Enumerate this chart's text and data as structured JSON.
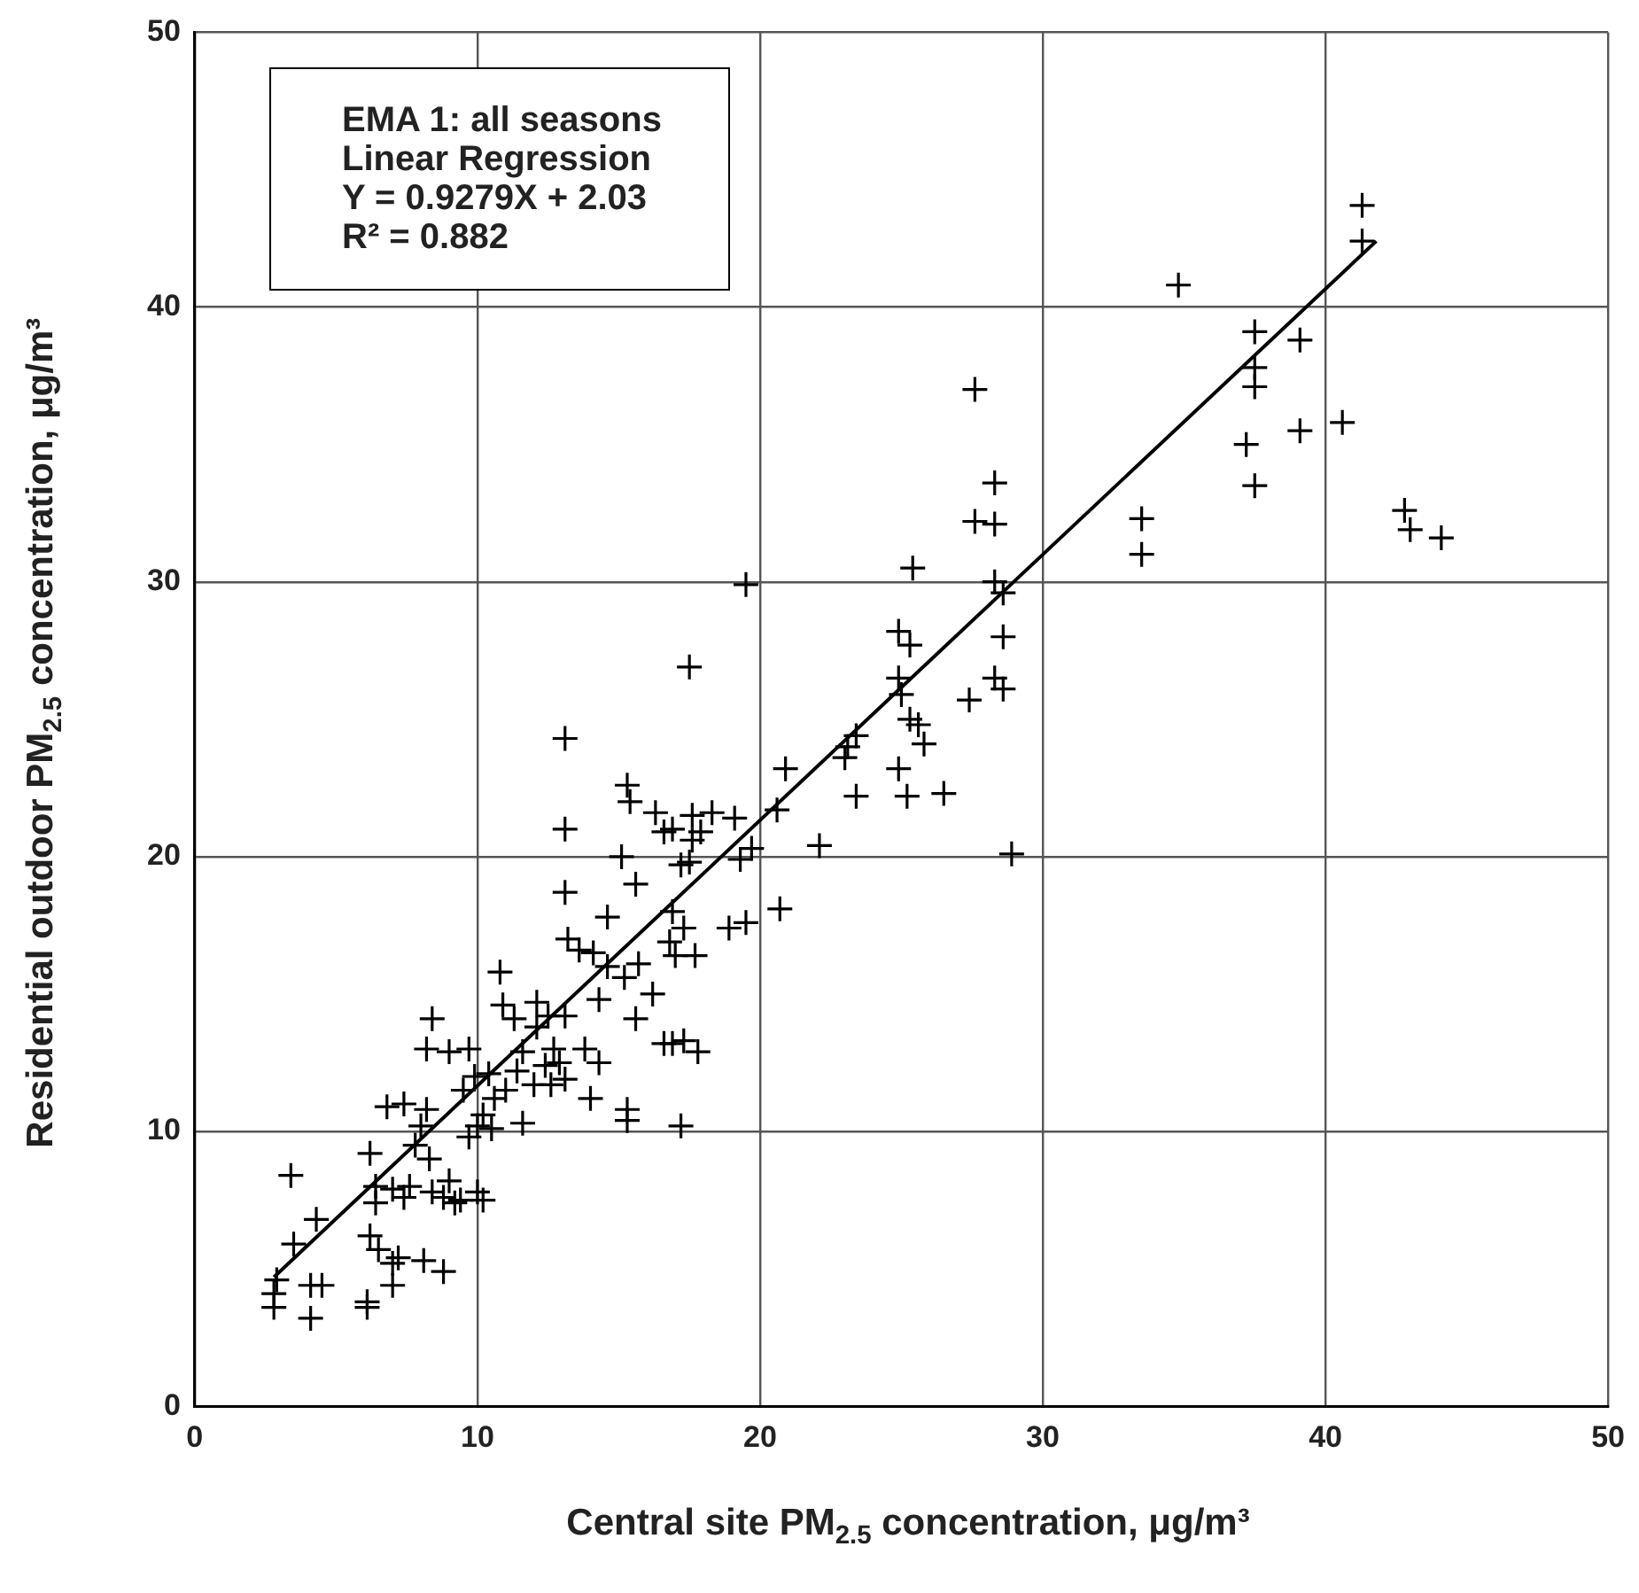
{
  "chart_data": {
    "type": "scatter",
    "xlabel": "Central site PM$_{2.5}$ concentration, μg/m³",
    "ylabel": "Residential outdoor PM$_{2.5}$ concentration, μg/m³",
    "annotations": [
      "EMA 1: all seasons",
      "Linear Regression",
      "Y = 0.9279X + 2.03",
      "R² = 0.882"
    ],
    "xlim": [
      0,
      50
    ],
    "ylim": [
      0,
      50
    ],
    "xticks": [
      0,
      10,
      20,
      30,
      40,
      50
    ],
    "yticks": [
      0,
      10,
      20,
      30,
      40,
      50
    ],
    "grid": true,
    "legend": false,
    "series": [
      {
        "marker": "cross",
        "color": "#000000",
        "x": [
          41.3,
          41.3,
          34.8,
          37.5,
          39.1,
          37.5,
          37.5,
          37.2,
          37.5,
          39.1,
          40.6,
          42.8,
          43.0,
          44.1,
          33.5,
          33.5,
          27.6,
          28.3,
          27.6,
          28.3,
          28.3,
          28.6,
          28.6,
          28.3,
          28.6,
          28.9,
          25.4,
          24.9,
          25.3,
          24.9,
          25.0,
          25.3,
          25.6,
          25.8,
          24.9,
          25.2,
          26.5,
          27.4,
          23.4,
          23.1,
          23.0,
          23.4,
          22.1,
          20.9,
          20.6,
          20.7,
          19.5,
          17.5,
          13.1,
          15.3,
          15.4,
          16.3,
          16.9,
          17.6,
          17.9,
          18.3,
          19.1,
          17.6,
          16.6,
          15.1,
          13.1,
          19.7,
          19.3,
          17.2,
          17.5,
          15.6,
          14.6,
          13.1,
          16.9,
          17.3,
          18.9,
          19.5,
          16.8,
          17.0,
          17.7,
          15.2,
          15.7,
          13.2,
          13.6,
          14.1,
          14.6,
          14.3,
          16.2,
          16.6,
          16.9,
          17.3,
          17.8,
          15.6,
          15.3,
          15.3,
          17.2,
          14.0,
          14.3,
          13.8,
          10.8,
          10.9,
          11.3,
          12.1,
          12.5,
          12.1,
          13.1,
          12.7,
          12.9,
          12.4,
          11.4,
          11.6,
          12.0,
          12.6,
          13.1,
          11.6,
          10.6,
          11.0,
          10.4,
          9.9,
          10.2,
          10.0,
          10.5,
          9.7,
          9.5,
          9.0,
          8.4,
          8.2,
          9.7,
          8.0,
          8.2,
          7.4,
          6.8,
          7.8,
          8.3,
          6.2,
          6.4,
          7.0,
          7.4,
          7.6,
          8.4,
          9.0,
          9.2,
          8.8,
          9.4,
          10.0,
          10.2,
          6.2,
          6.5,
          7.0,
          7.2,
          8.1,
          8.8,
          7.0,
          6.1,
          6.1,
          4.3,
          3.5,
          3.4,
          2.9,
          2.8,
          2.8,
          4.1,
          4.5,
          4.1,
          6.4
        ],
        "values": [
          43.7,
          42.4,
          40.8,
          39.1,
          38.8,
          37.8,
          37.1,
          35.0,
          33.5,
          35.5,
          35.8,
          32.6,
          31.9,
          31.6,
          32.3,
          31.0,
          37.0,
          33.6,
          32.2,
          32.1,
          30.0,
          29.6,
          28.0,
          26.5,
          26.1,
          20.1,
          30.5,
          28.2,
          27.7,
          26.5,
          25.9,
          25.0,
          24.8,
          24.1,
          23.2,
          22.2,
          22.3,
          25.7,
          24.4,
          24.0,
          23.6,
          22.2,
          20.4,
          23.2,
          21.7,
          18.1,
          29.9,
          26.9,
          24.3,
          22.6,
          22.0,
          21.6,
          21.0,
          21.5,
          20.9,
          21.6,
          21.4,
          20.6,
          20.9,
          20.0,
          21.0,
          20.3,
          19.9,
          19.7,
          19.8,
          19.0,
          17.8,
          18.7,
          18.0,
          17.4,
          17.4,
          17.6,
          16.9,
          16.4,
          16.4,
          15.6,
          16.1,
          17.0,
          16.6,
          16.5,
          16.0,
          14.8,
          15.0,
          13.2,
          13.2,
          13.3,
          12.9,
          14.1,
          10.8,
          10.4,
          10.2,
          11.2,
          12.5,
          13.0,
          15.8,
          14.6,
          14.1,
          14.7,
          14.2,
          13.8,
          14.2,
          13.0,
          12.5,
          12.4,
          12.2,
          12.9,
          11.7,
          11.7,
          11.9,
          10.3,
          11.2,
          11.5,
          12.1,
          12.0,
          10.6,
          10.2,
          10.1,
          9.8,
          11.5,
          12.9,
          14.1,
          13.0,
          13.0,
          10.2,
          10.8,
          11.0,
          10.9,
          9.5,
          9.0,
          9.2,
          8.0,
          7.9,
          7.6,
          8.0,
          7.8,
          8.2,
          7.4,
          7.6,
          7.5,
          7.8,
          7.5,
          6.2,
          5.7,
          5.2,
          5.4,
          5.3,
          4.9,
          4.4,
          3.8,
          3.6,
          6.8,
          5.9,
          8.4,
          4.6,
          4.1,
          3.6,
          4.4,
          4.4,
          3.2,
          7.4
        ]
      },
      {
        "type": "line",
        "marker": "none",
        "color": "#000000",
        "x": [
          2.8,
          41.8
        ],
        "values": [
          4.7,
          42.4
        ]
      }
    ]
  }
}
